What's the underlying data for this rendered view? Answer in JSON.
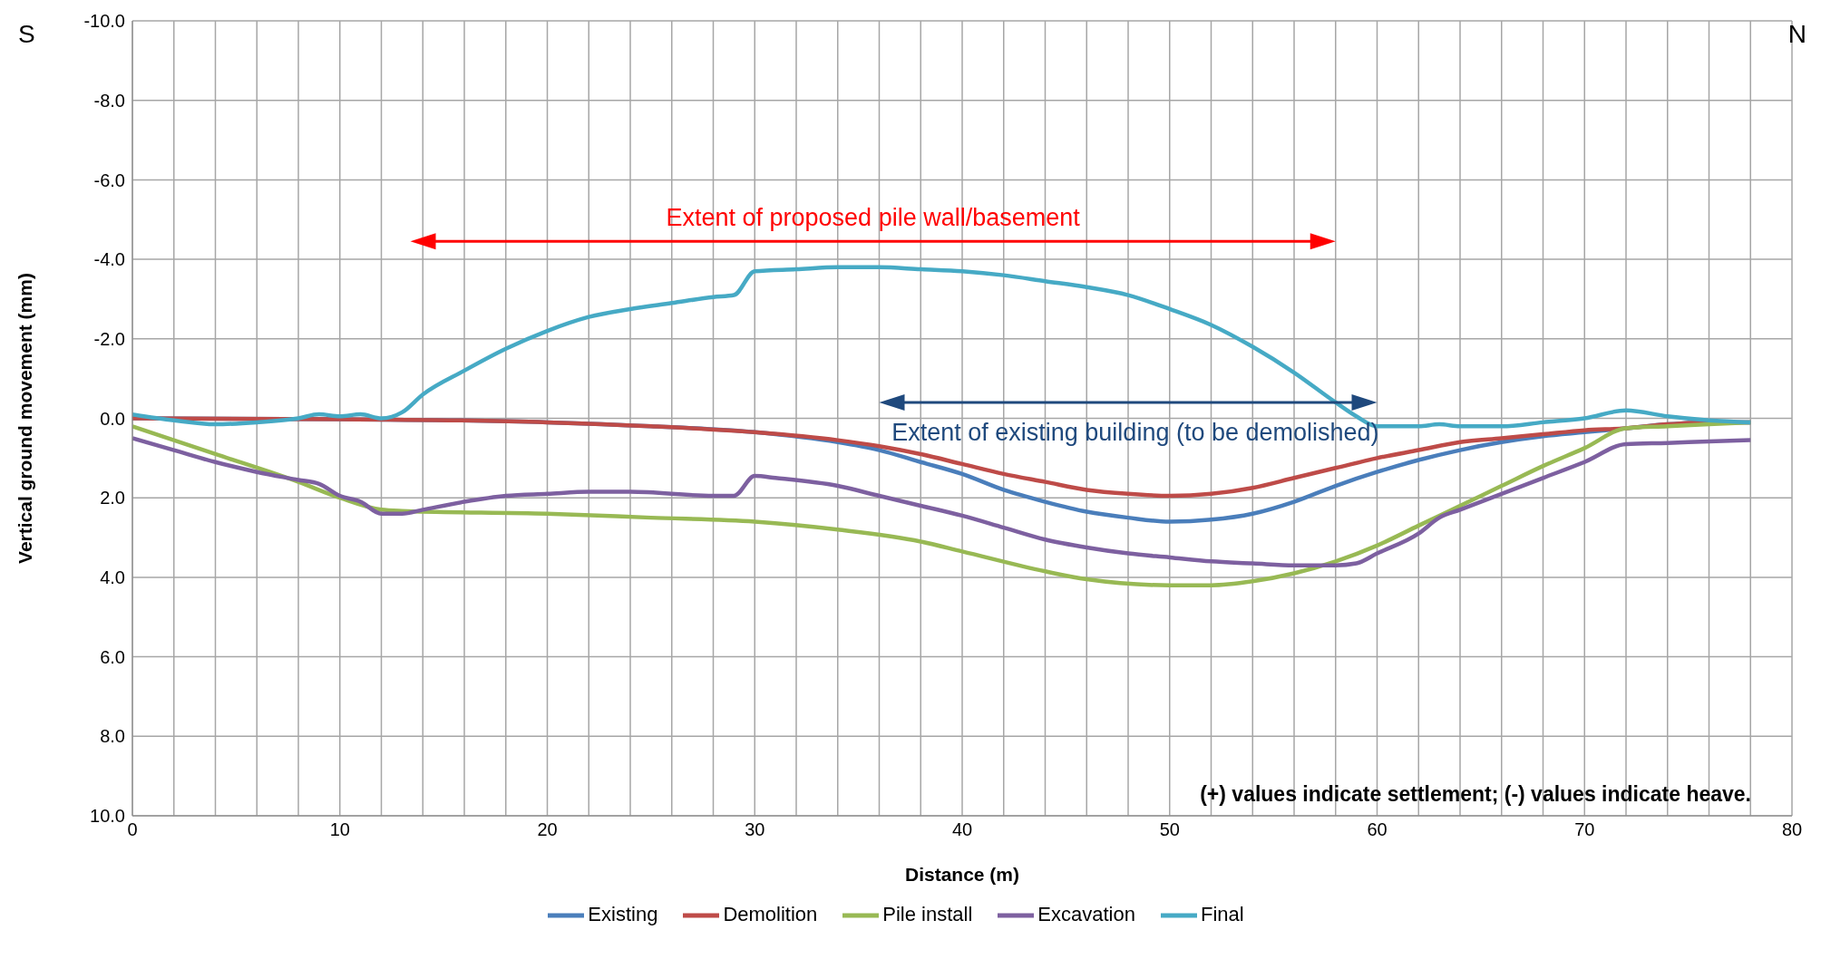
{
  "chart_data": {
    "type": "line",
    "xlabel": "Distance (m)",
    "ylabel": "Vertical ground movement (mm)",
    "xlim": [
      0,
      80
    ],
    "xticks": [
      0,
      {
        "value": 2,
        "label": null
      },
      {
        "value": 4,
        "label": null
      },
      {
        "value": 6,
        "label": null
      },
      {
        "value": 8,
        "label": null
      },
      10,
      {
        "value": 12,
        "label": null
      },
      {
        "value": 14,
        "label": null
      },
      {
        "value": 16,
        "label": null
      },
      {
        "value": 18,
        "label": null
      },
      20,
      {
        "value": 22,
        "label": null
      },
      {
        "value": 24,
        "label": null
      },
      {
        "value": 26,
        "label": null
      },
      {
        "value": 28,
        "label": null
      },
      30,
      {
        "value": 32,
        "label": null
      },
      {
        "value": 34,
        "label": null
      },
      {
        "value": 36,
        "label": null
      },
      {
        "value": 38,
        "label": null
      },
      40,
      {
        "value": 42,
        "label": null
      },
      {
        "value": 44,
        "label": null
      },
      {
        "value": 46,
        "label": null
      },
      {
        "value": 48,
        "label": null
      },
      50,
      {
        "value": 52,
        "label": null
      },
      {
        "value": 54,
        "label": null
      },
      {
        "value": 56,
        "label": null
      },
      {
        "value": 58,
        "label": null
      },
      60,
      {
        "value": 62,
        "label": null
      },
      {
        "value": 64,
        "label": null
      },
      {
        "value": 66,
        "label": null
      },
      {
        "value": 68,
        "label": null
      },
      70,
      {
        "value": 72,
        "label": null
      },
      {
        "value": 74,
        "label": null
      },
      {
        "value": 76,
        "label": null
      },
      {
        "value": 78,
        "label": null
      },
      80
    ],
    "ylim": [
      10,
      -10
    ],
    "yticks": [
      {
        "value": -10,
        "label": "-10.0"
      },
      {
        "value": -8,
        "label": "-8.0"
      },
      {
        "value": -6,
        "label": "-6.0"
      },
      {
        "value": -4,
        "label": "-4.0"
      },
      {
        "value": -2,
        "label": "-2.0"
      },
      {
        "value": 0,
        "label": "0.0"
      },
      {
        "value": 2,
        "label": "2.0"
      },
      {
        "value": 4,
        "label": "4.0"
      },
      {
        "value": 6,
        "label": "6.0"
      },
      {
        "value": 8,
        "label": "8.0"
      },
      {
        "value": 10,
        "label": "10.0"
      }
    ],
    "grid": true,
    "legend": "bottom",
    "marker": "none",
    "line_style": "solid",
    "annotations": [
      "S",
      "N",
      "Extent of proposed pile wall/basement",
      "Extent of existing building (to be demolished)",
      "(+) values indicate settlement; (-) values indicate heave."
    ],
    "series": [
      {
        "name": "Existing",
        "color": "#4a7ebb",
        "x": [
          0,
          10,
          20,
          25,
          30,
          34,
          36,
          38,
          40,
          42,
          44,
          46,
          48,
          50,
          52,
          54,
          56,
          58,
          60,
          62,
          64,
          66,
          68,
          70,
          72,
          74,
          76,
          78
        ],
        "values": [
          0,
          0.02,
          0.1,
          0.2,
          0.35,
          0.6,
          0.8,
          1.1,
          1.4,
          1.8,
          2.1,
          2.35,
          2.5,
          2.6,
          2.55,
          2.4,
          2.1,
          1.7,
          1.35,
          1.05,
          0.8,
          0.6,
          0.45,
          0.35,
          0.25,
          0.15,
          0.1,
          0.1
        ]
      },
      {
        "name": "Demolition",
        "color": "#be4b48",
        "x": [
          0,
          10,
          20,
          25,
          30,
          34,
          36,
          38,
          40,
          42,
          44,
          46,
          48,
          50,
          52,
          54,
          56,
          58,
          60,
          62,
          64,
          66,
          68,
          70,
          72,
          74,
          76,
          78
        ],
        "values": [
          0,
          0.02,
          0.1,
          0.2,
          0.35,
          0.55,
          0.7,
          0.9,
          1.15,
          1.4,
          1.6,
          1.8,
          1.9,
          1.95,
          1.9,
          1.75,
          1.5,
          1.25,
          1,
          0.8,
          0.6,
          0.5,
          0.4,
          0.3,
          0.25,
          0.15,
          0.1,
          0.1
        ]
      },
      {
        "name": "Pile install",
        "color": "#98b954",
        "x": [
          0,
          4,
          8,
          10,
          12,
          13,
          20,
          25,
          30,
          34,
          38,
          40,
          44,
          46,
          50,
          52,
          54,
          56,
          58,
          60,
          62,
          64,
          66,
          68,
          70,
          72,
          74,
          76,
          78
        ],
        "values": [
          0.2,
          0.9,
          1.6,
          2,
          2.3,
          2.33,
          2.4,
          2.5,
          2.6,
          2.8,
          3.1,
          3.35,
          3.85,
          4.05,
          4.2,
          4.2,
          4.1,
          3.9,
          3.6,
          3.2,
          2.7,
          2.2,
          1.7,
          1.2,
          0.75,
          0.25,
          0.2,
          0.15,
          0.1
        ]
      },
      {
        "name": "Excavation",
        "color": "#7d60a0",
        "x": [
          0,
          2,
          4,
          6,
          8,
          9,
          10,
          11,
          12,
          13,
          14,
          16,
          18,
          20,
          22,
          24,
          28,
          29,
          30,
          31,
          34,
          36,
          38,
          40,
          42,
          44,
          46,
          48,
          50,
          52,
          54,
          56,
          58,
          59,
          60,
          62,
          63,
          64,
          66,
          68,
          70,
          72,
          74,
          76,
          78
        ],
        "values": [
          0.5,
          0.8,
          1.1,
          1.35,
          1.55,
          1.65,
          1.95,
          2.1,
          2.4,
          2.4,
          2.3,
          2.1,
          1.95,
          1.9,
          1.85,
          1.85,
          1.95,
          1.95,
          1.45,
          1.5,
          1.7,
          1.95,
          2.2,
          2.45,
          2.75,
          3.05,
          3.25,
          3.4,
          3.5,
          3.6,
          3.65,
          3.7,
          3.7,
          3.65,
          3.4,
          2.9,
          2.5,
          2.3,
          1.9,
          1.5,
          1.1,
          0.65,
          0.62,
          0.58,
          0.55
        ]
      },
      {
        "name": "Final",
        "color": "#46aac5",
        "x": [
          0,
          2,
          4,
          6,
          8,
          9,
          10,
          11,
          12,
          13,
          14,
          16,
          18,
          20,
          22,
          24,
          26,
          28,
          29,
          30,
          32,
          34,
          36,
          38,
          40,
          42,
          44,
          46,
          48,
          50,
          52,
          54,
          56,
          58,
          59,
          60,
          62,
          63,
          64,
          66,
          68,
          70,
          72,
          74,
          76,
          78
        ],
        "values": [
          -0.1,
          0.05,
          0.15,
          0.1,
          0,
          -0.1,
          -0.05,
          -0.1,
          0,
          -0.15,
          -0.6,
          -1.2,
          -1.75,
          -2.2,
          -2.55,
          -2.75,
          -2.9,
          -3.05,
          -3.1,
          -3.7,
          -3.75,
          -3.8,
          -3.8,
          -3.75,
          -3.7,
          -3.6,
          -3.45,
          -3.3,
          -3.1,
          -2.75,
          -2.35,
          -1.8,
          -1.15,
          -0.4,
          -0.05,
          0.2,
          0.2,
          0.15,
          0.2,
          0.2,
          0.1,
          0,
          -0.2,
          -0.05,
          0.05,
          0.1
        ]
      }
    ]
  }
}
